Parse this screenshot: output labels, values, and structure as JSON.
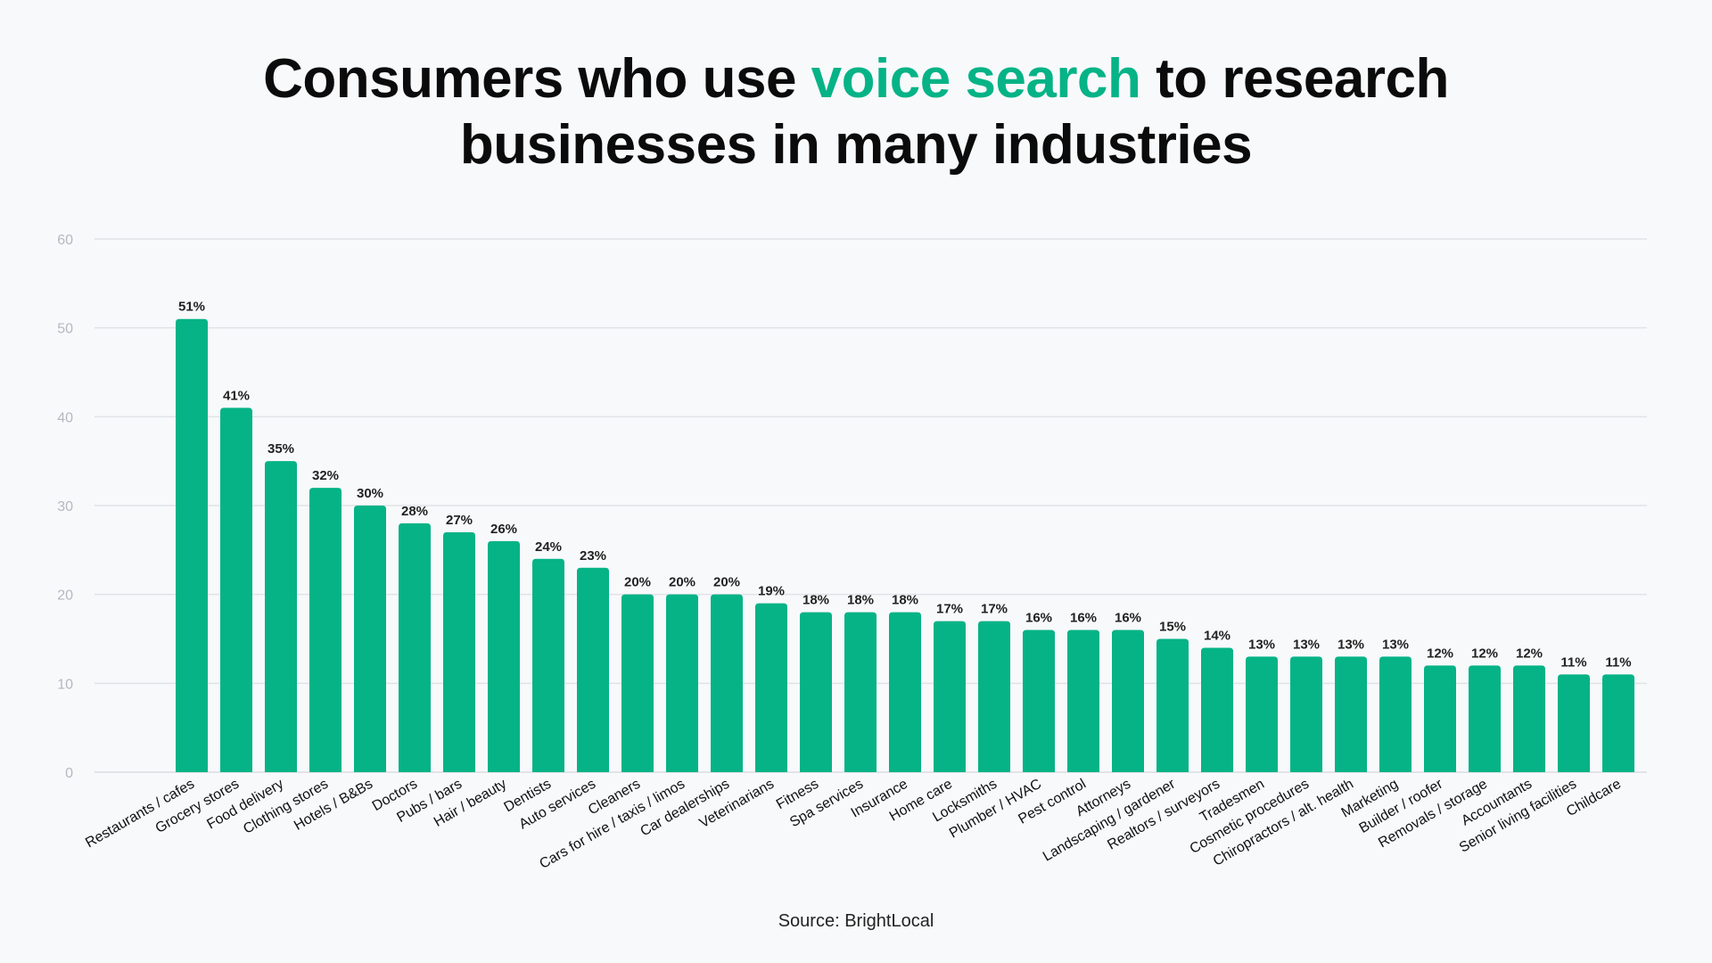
{
  "title": {
    "part1": "Consumers who use ",
    "highlight": "voice search",
    "part2": " to research",
    "line2": "businesses in many industries"
  },
  "source": "Source: BrightLocal",
  "colors": {
    "bar": "#05b386",
    "highlight": "#05b386",
    "grid": "#e1e3e8",
    "axis_text": "#b5b8bf"
  },
  "chart_data": {
    "type": "bar",
    "ylim": [
      0,
      60
    ],
    "yticks": [
      0,
      10,
      20,
      30,
      40,
      50,
      60
    ],
    "grid": true,
    "categories": [
      "Restaurants / cafes",
      "Grocery stores",
      "Food delivery",
      "Clothing stores",
      "Hotels / B&Bs",
      "Doctors",
      "Pubs / bars",
      "Hair / beauty",
      "Dentists",
      "Auto services",
      "Cleaners",
      "Cars for hire / taxis / limos",
      "Car dealerships",
      "Veterinarians",
      "Fitness",
      "Spa services",
      "Insurance",
      "Home care",
      "Locksmiths",
      "Plumber / HVAC",
      "Pest control",
      "Attorneys",
      "Landscaping / gardener",
      "Realtors / surveyors",
      "Tradesmen",
      "Cosmetic procedures",
      "Chiropractors / alt. health",
      "Marketing",
      "Builder / roofer",
      "Removals / storage",
      "Accountants",
      "Senior living facilities",
      "Childcare"
    ],
    "values": [
      51,
      41,
      35,
      32,
      30,
      28,
      27,
      26,
      24,
      23,
      20,
      20,
      20,
      19,
      18,
      18,
      18,
      17,
      17,
      16,
      16,
      16,
      15,
      14,
      13,
      13,
      13,
      13,
      12,
      12,
      12,
      11,
      11
    ],
    "data_labels": [
      "51%",
      "41%",
      "35%",
      "32%",
      "30%",
      "28%",
      "27%",
      "26%",
      "24%",
      "23%",
      "20%",
      "20%",
      "20%",
      "19%",
      "18%",
      "18%",
      "18%",
      "17%",
      "17%",
      "16%",
      "16%",
      "16%",
      "15%",
      "14%",
      "13%",
      "13%",
      "13%",
      "13%",
      "12%",
      "12%",
      "12%",
      "11%",
      "11%"
    ]
  }
}
